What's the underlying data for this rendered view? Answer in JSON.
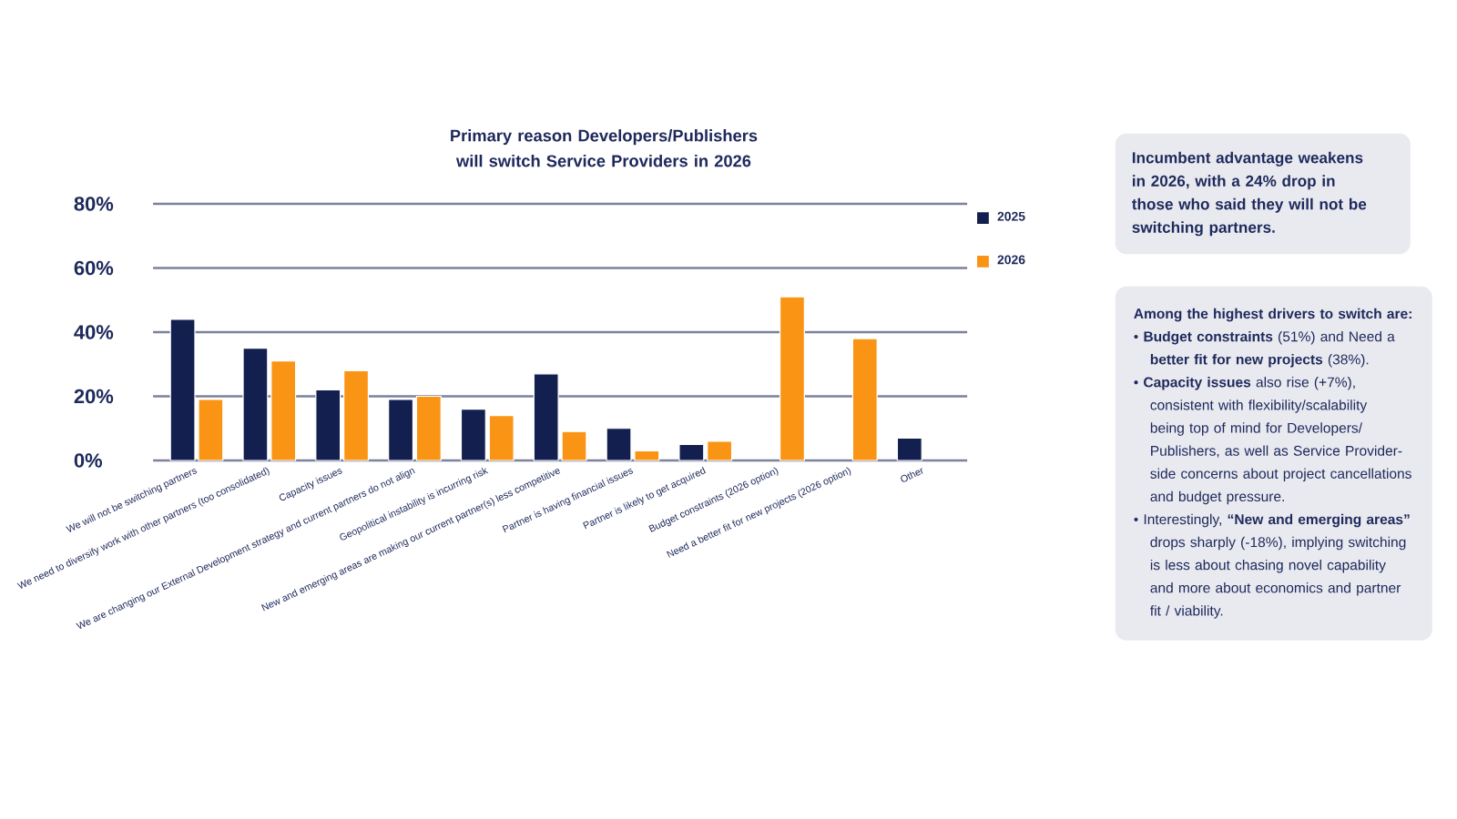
{
  "chart_data": {
    "type": "bar",
    "title": "Primary reason Developers/Publishers will switch Service Providers in 2026",
    "categories": [
      "We will not be switching partners",
      "We need to diversify work with other partners (too consolidated)",
      "Capacity issues",
      "We are changing our External Development strategy and current partners do not align",
      "Geopolitical instability is incurring risk",
      "New and emerging areas are making our current partner(s) less competitive",
      "Partner is having financial issues",
      "Partner is likely to get acquired",
      "Budget constraints (2026 option)",
      "Need a better fit for new projects (2026 option)",
      "Other"
    ],
    "series": [
      {
        "name": "2025",
        "color": "#13204f",
        "values": [
          44,
          35,
          22,
          19,
          16,
          27,
          10,
          5,
          null,
          null,
          7
        ]
      },
      {
        "name": "2026",
        "color": "#fa9415",
        "values": [
          19,
          31,
          28,
          20,
          14,
          9,
          3,
          6,
          51,
          38,
          null
        ]
      }
    ],
    "ylim": [
      0,
      80
    ],
    "yticks": [
      {
        "value": 0,
        "label": "0%"
      },
      {
        "value": 20,
        "label": "20%"
      },
      {
        "value": 40,
        "label": "40%"
      },
      {
        "value": 60,
        "label": "60%"
      },
      {
        "value": 80,
        "label": "80%"
      }
    ],
    "grid": "y",
    "legend": "top right",
    "annotations": [
      "Incumbent advantage weakens in 2026, with a 24% drop in those who said they will not be switching partners.",
      "Among the highest drivers to switch are:",
      "• **Budget constraints** (51%) and Need a **better fit for new projects** (38%).",
      "• **Capacity issues** also rise (+7%), consistent with flexibility/scalability being top of mind for Developers/ Publishers, as well as Service Provider-side concerns about project cancellations and budget pressure.",
      "• Interestingly, **“New and emerging areas”** drops sharply (-18%), implying switching is less about chasing novel capability and more about economics and partner fit / viability."
    ]
  }
}
